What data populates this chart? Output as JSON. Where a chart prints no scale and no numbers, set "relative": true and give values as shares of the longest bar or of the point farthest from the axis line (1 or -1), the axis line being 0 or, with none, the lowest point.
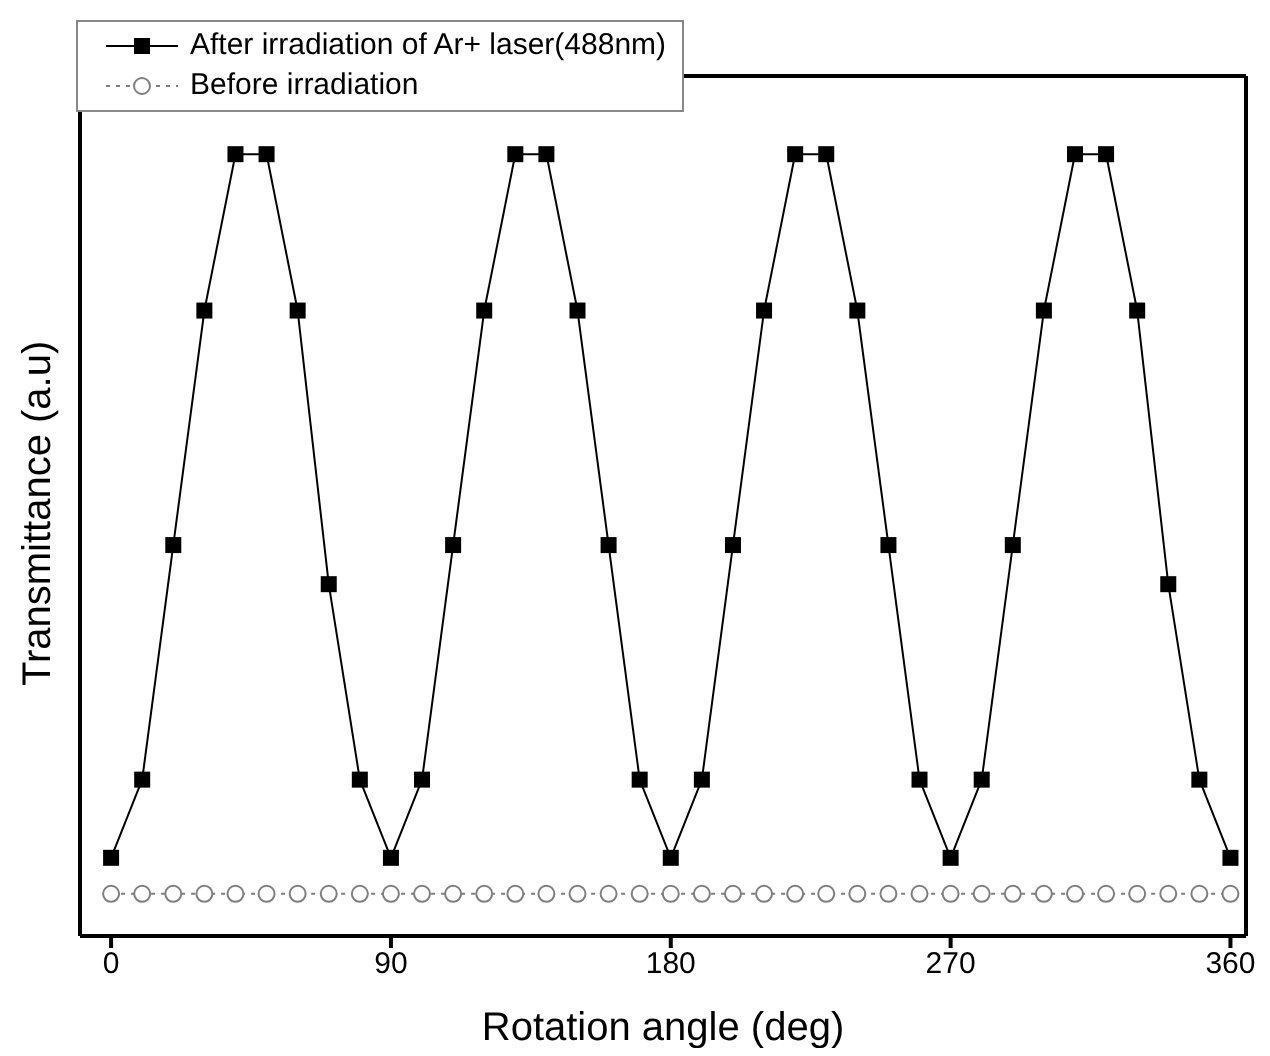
{
  "chart_data": {
    "type": "line",
    "relative": true,
    "xlabel": "Rotation angle (deg)",
    "ylabel": "Transmittance (a.u)",
    "x": [
      0,
      10,
      20,
      30,
      40,
      50,
      60,
      70,
      80,
      90,
      100,
      110,
      120,
      130,
      140,
      150,
      160,
      170,
      180,
      190,
      200,
      210,
      220,
      230,
      240,
      250,
      260,
      270,
      280,
      290,
      300,
      310,
      320,
      330,
      340,
      350,
      360
    ],
    "xlim": [
      -10,
      365
    ],
    "xticks": [
      0,
      90,
      180,
      270,
      360
    ],
    "grid": false,
    "legend": "top left",
    "series": [
      {
        "name": "After irradiation of Ar+ laser(488nm)",
        "color": "#000000",
        "marker": "square",
        "line_style": "solid",
        "values": [
          0.1,
          0.2,
          0.5,
          0.8,
          1,
          1,
          0.8,
          0.45,
          0.2,
          0.1,
          0.2,
          0.5,
          0.8,
          1,
          1,
          0.8,
          0.5,
          0.2,
          0.1,
          0.2,
          0.5,
          0.8,
          1,
          1,
          0.8,
          0.5,
          0.2,
          0.1,
          0.2,
          0.5,
          0.8,
          1,
          1,
          0.8,
          0.45,
          0.2,
          0.1
        ]
      },
      {
        "name": "Before irradiation",
        "color": "#7f7f7f",
        "marker": "circle",
        "line_style": "dotted",
        "values": [
          0.054,
          0.054,
          0.054,
          0.054,
          0.054,
          0.054,
          0.054,
          0.054,
          0.054,
          0.054,
          0.054,
          0.054,
          0.054,
          0.054,
          0.054,
          0.054,
          0.054,
          0.054,
          0.054,
          0.054,
          0.054,
          0.054,
          0.054,
          0.054,
          0.054,
          0.054,
          0.054,
          0.054,
          0.054,
          0.054,
          0.054,
          0.054,
          0.054,
          0.054,
          0.054,
          0.054,
          0.054
        ]
      }
    ]
  }
}
